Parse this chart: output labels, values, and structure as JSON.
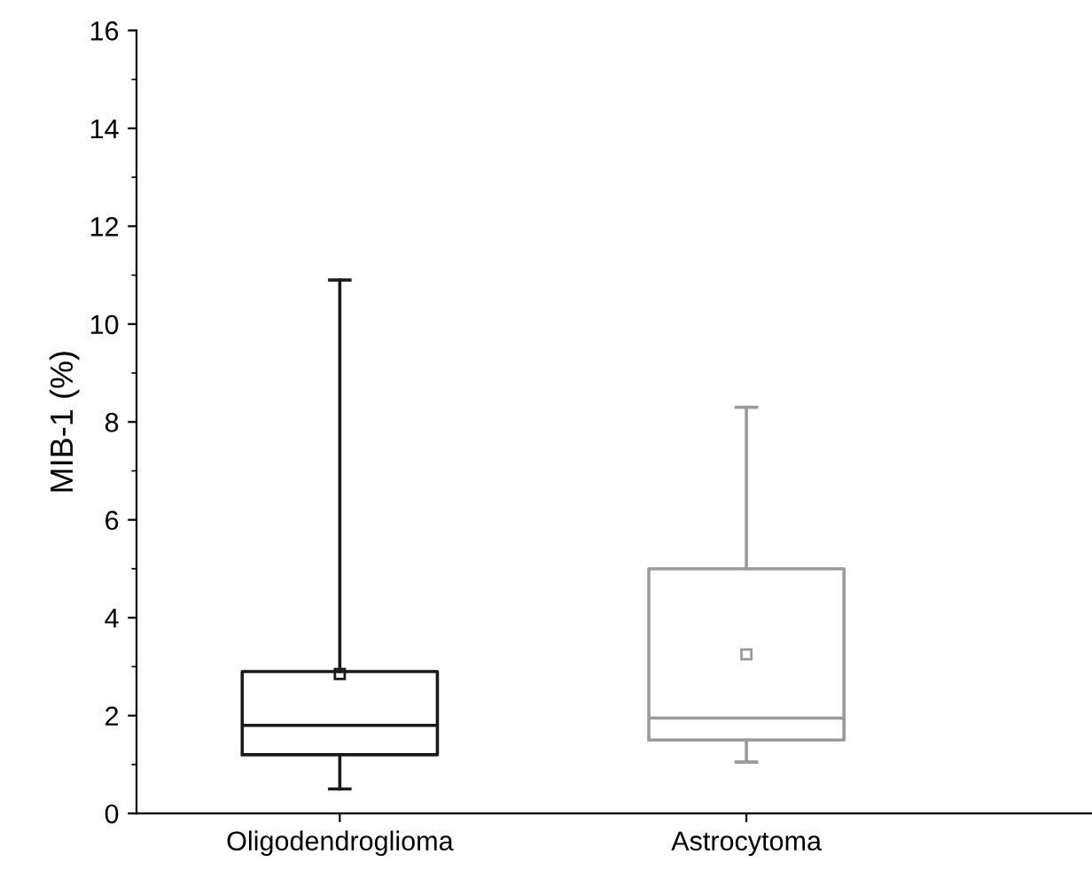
{
  "chart_data": {
    "type": "box",
    "ylabel": "MIB-1 (%)",
    "categories": [
      "Oligodendroglioma",
      "Astrocytoma"
    ],
    "boxes": [
      {
        "low": 0.5,
        "q1": 1.2,
        "median": 1.8,
        "q3": 2.9,
        "high": 10.9,
        "mean": 2.85
      },
      {
        "low": 1.05,
        "q1": 1.5,
        "median": 1.95,
        "q3": 5.0,
        "high": 8.3,
        "mean": 3.25
      }
    ],
    "colors": [
      "#1a1a1a",
      "#9a9a9a"
    ],
    "ylim": [
      0,
      16
    ],
    "yticks": [
      0,
      2,
      4,
      6,
      8,
      10,
      12,
      14,
      16
    ],
    "grid": false
  }
}
